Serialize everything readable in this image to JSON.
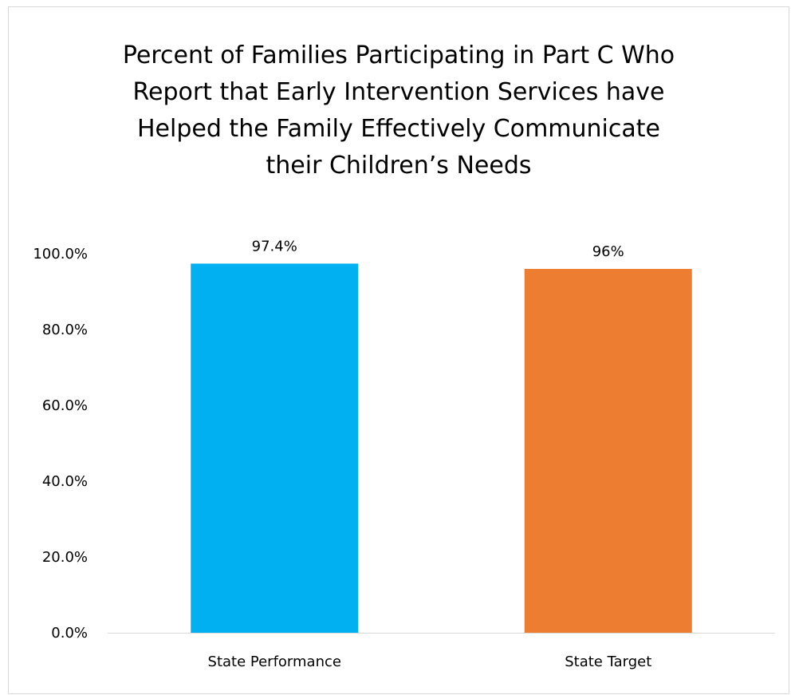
{
  "chart_data": {
    "type": "bar",
    "title_lines": [
      "Percent of Families Participating in Part C Who",
      "Report that Early Intervention Services have",
      "Helped the Family Effectively Communicate",
      "their Children’s Needs"
    ],
    "categories": [
      "State Performance",
      "State Target"
    ],
    "values": [
      97.4,
      96
    ],
    "data_labels": [
      "97.4%",
      "96%"
    ],
    "colors": [
      "#00B0F0",
      "#ED7D31"
    ],
    "y_ticks": [
      0,
      20,
      40,
      60,
      80,
      100
    ],
    "y_tick_labels": [
      "0.0%",
      "20.0%",
      "40.0%",
      "60.0%",
      "80.0%",
      "100.0%"
    ],
    "ylim": [
      0,
      100
    ],
    "grid": false,
    "legend": "none",
    "xlabel": "",
    "ylabel": ""
  }
}
